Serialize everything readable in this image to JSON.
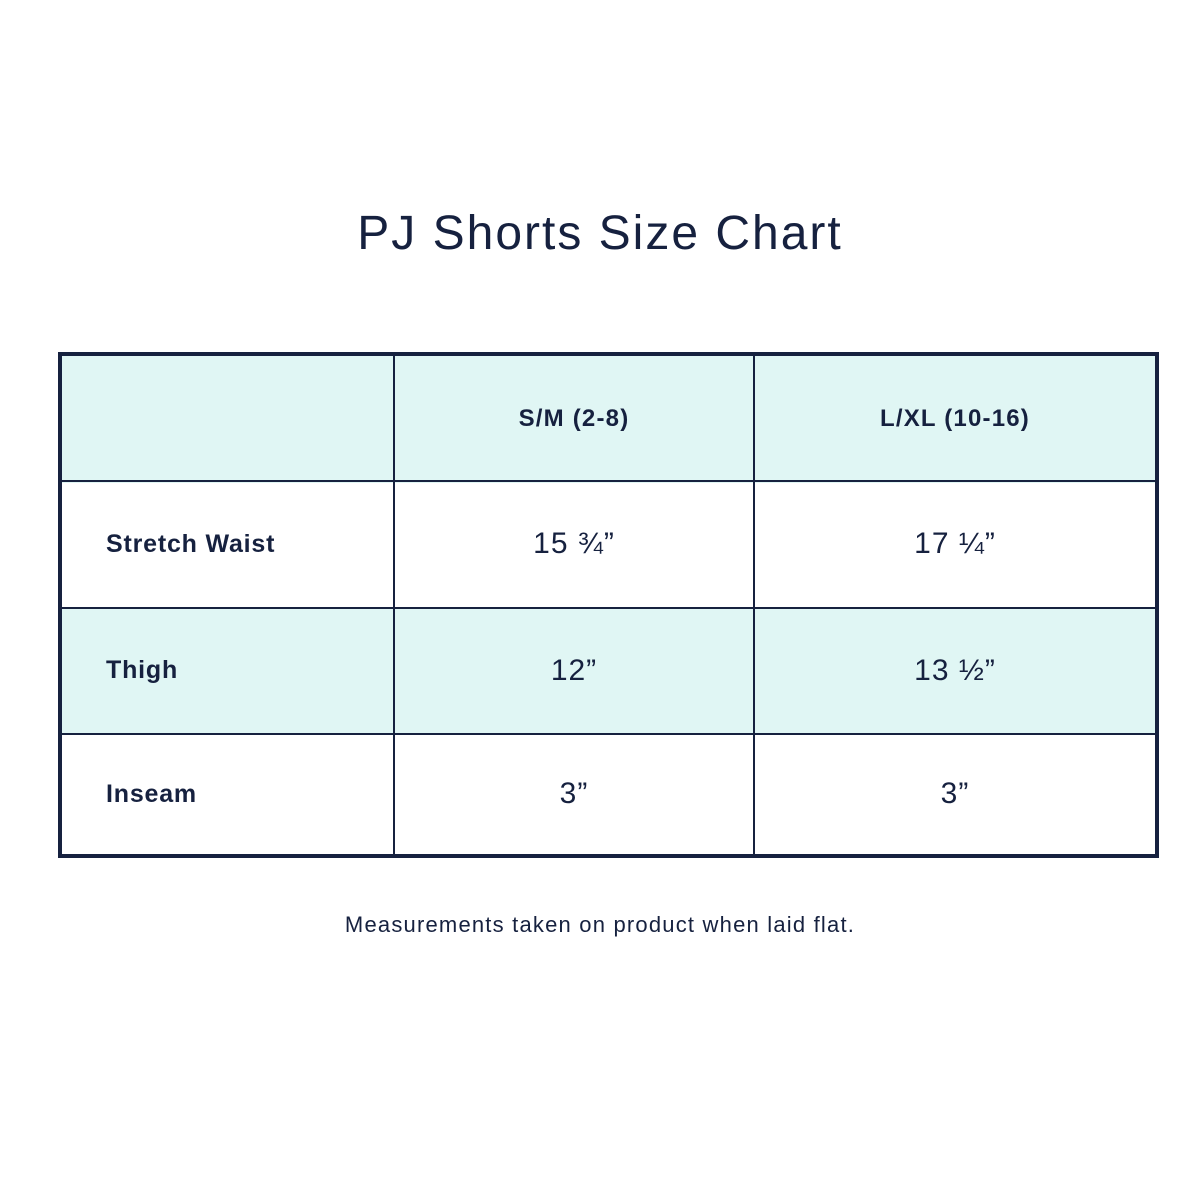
{
  "title": "PJ Shorts Size Chart",
  "colors": {
    "border": "#16213f",
    "shade": "#e0f6f4",
    "text": "#16213f"
  },
  "chart_data": {
    "type": "table",
    "title": "PJ Shorts Size Chart",
    "columns": [
      "",
      "S/M (2-8)",
      "L/XL (10-16)"
    ],
    "rows": [
      {
        "label": "Stretch Waist",
        "values": [
          "15 ¾”",
          "17 ¼”"
        ]
      },
      {
        "label": "Thigh",
        "values": [
          "12”",
          "13 ½”"
        ]
      },
      {
        "label": "Inseam",
        "values": [
          "3”",
          "3”"
        ]
      }
    ]
  },
  "footnote": "Measurements taken on product when laid flat."
}
